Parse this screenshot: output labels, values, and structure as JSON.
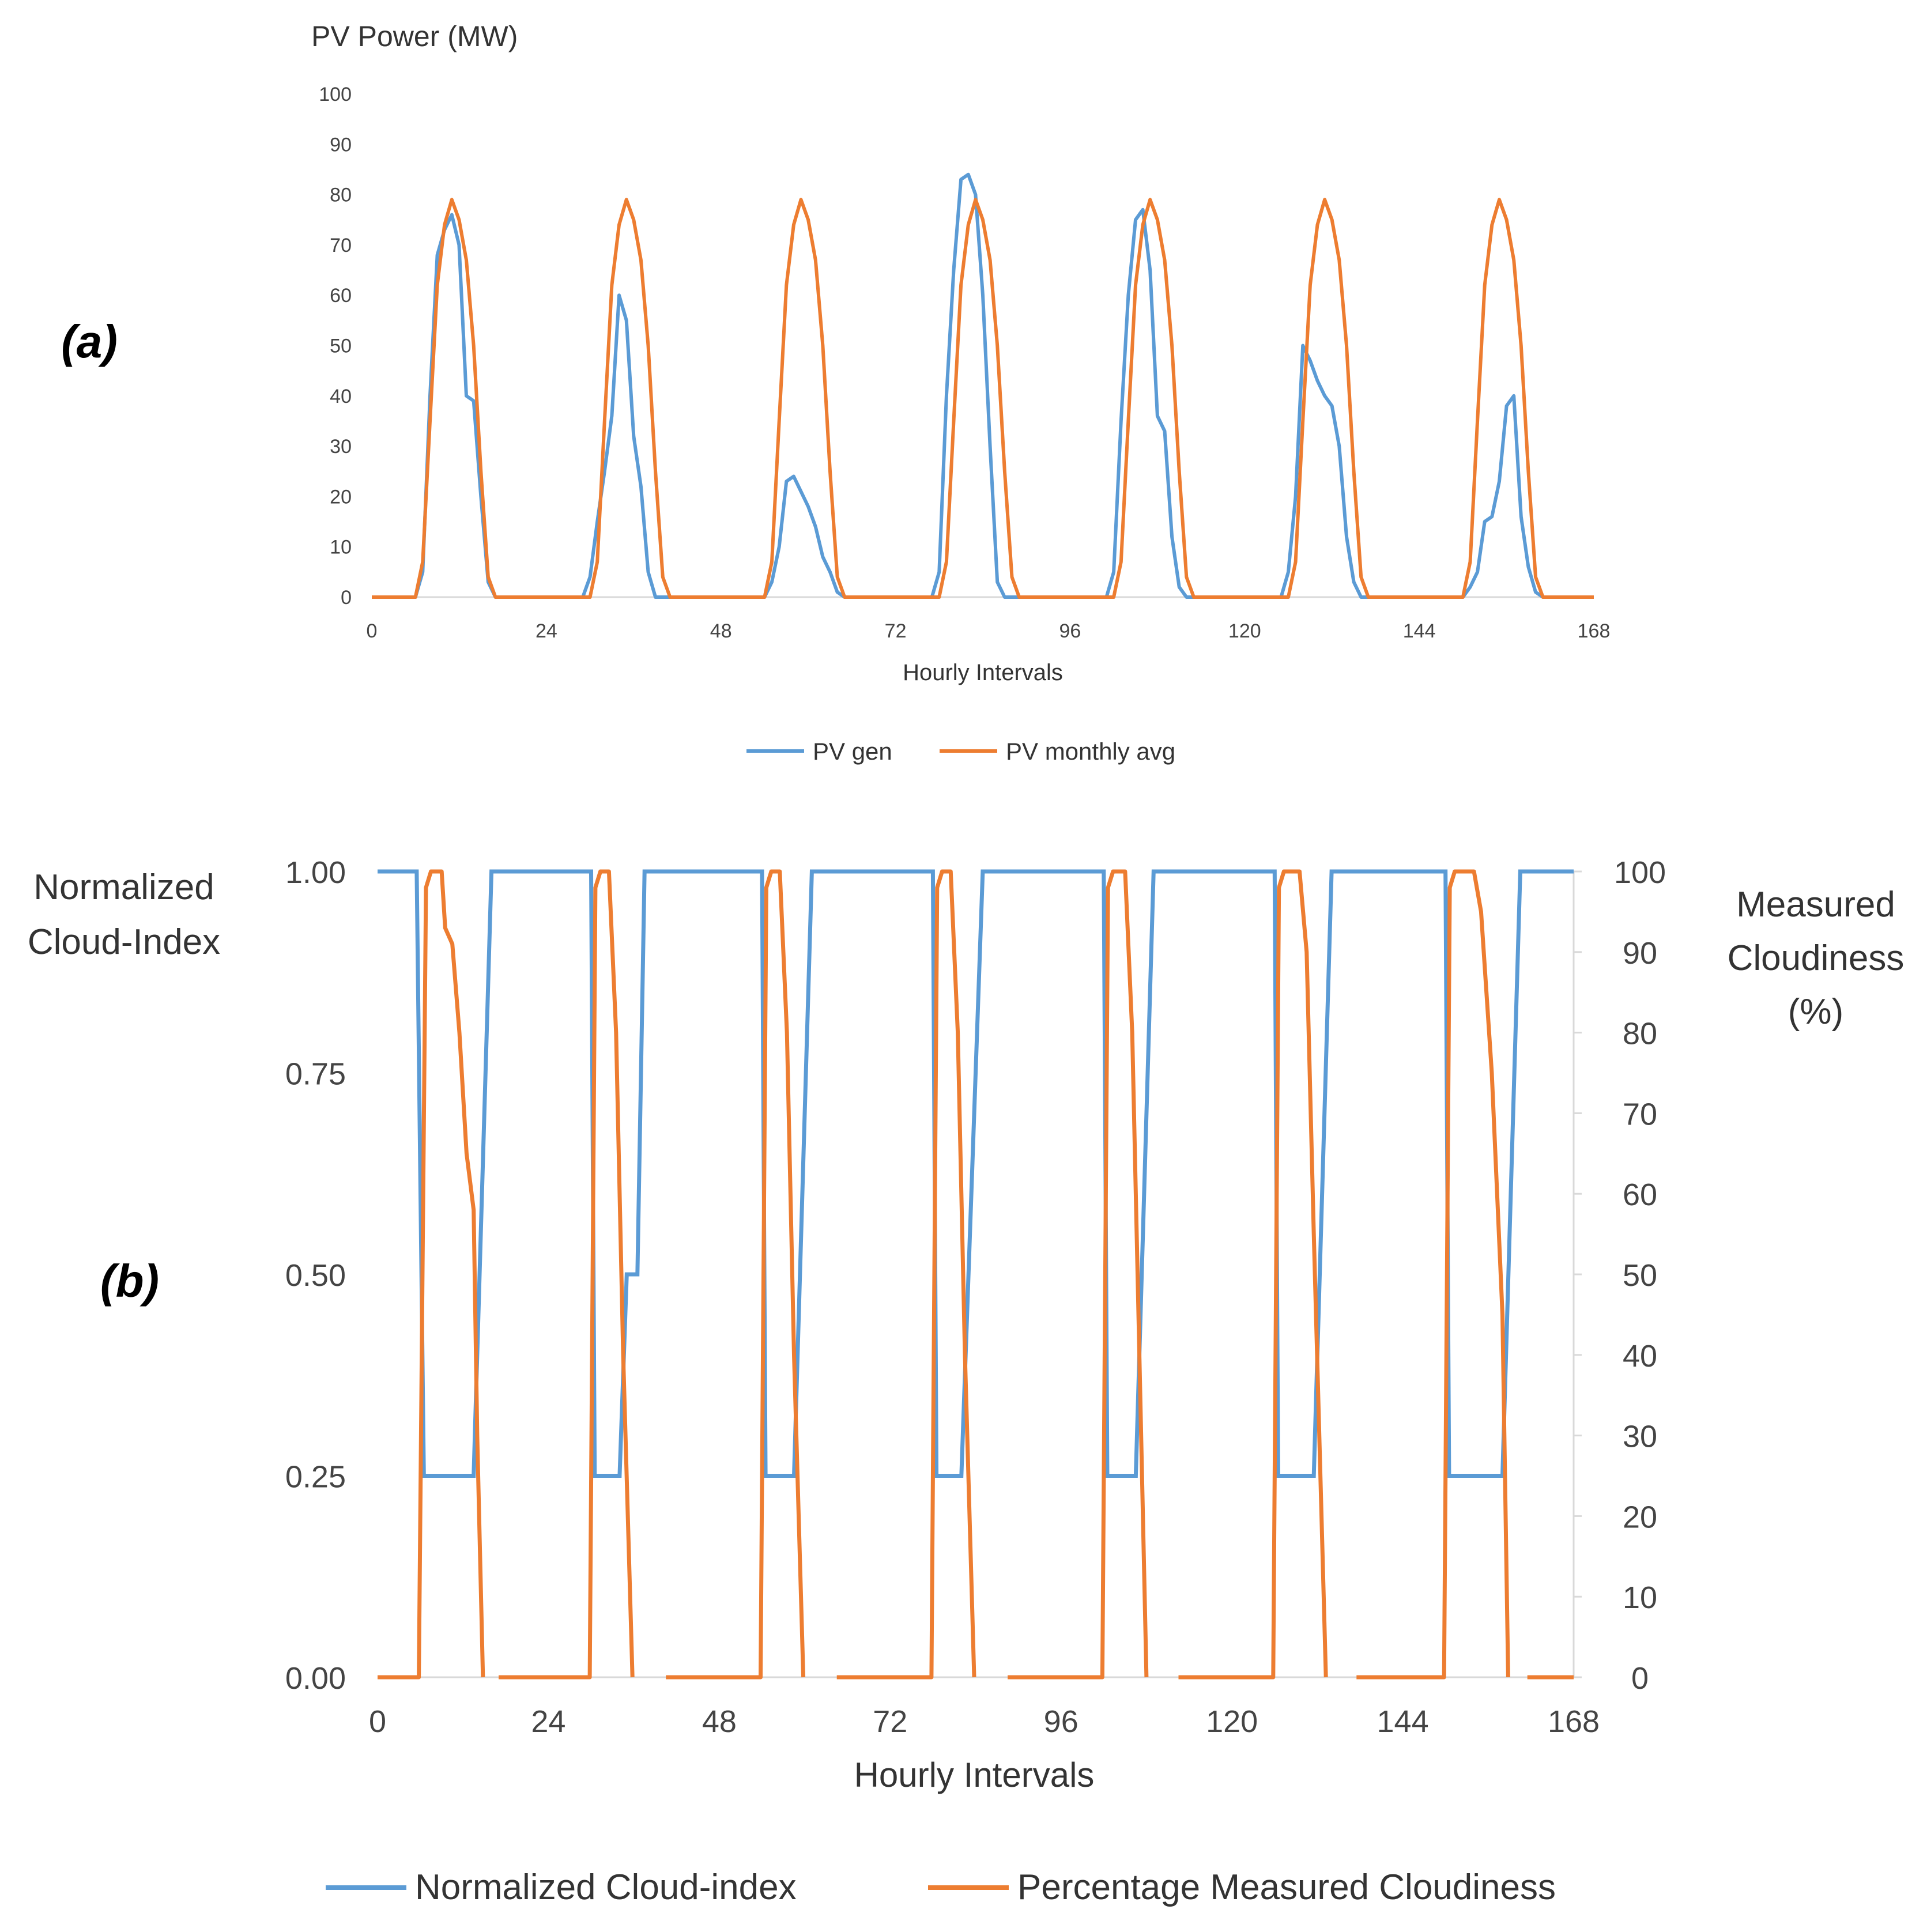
{
  "colors": {
    "blue": "#5b9bd5",
    "orange": "#ed7d31",
    "axis": "#d9d9d9"
  },
  "chart_data": [
    {
      "panel": "(a)",
      "type": "line",
      "title": "",
      "ylabel": "PV Power (MW)",
      "xlabel": "Hourly Intervals",
      "xlim": [
        0,
        168
      ],
      "ylim": [
        0,
        100
      ],
      "xticks": [
        "0",
        "24",
        "48",
        "72",
        "96",
        "120",
        "144",
        "168"
      ],
      "yticks": [
        "0",
        "10",
        "20",
        "30",
        "40",
        "50",
        "60",
        "70",
        "80",
        "90",
        "100"
      ],
      "grid": false,
      "legend": "bottom",
      "series": [
        {
          "name": "PV gen",
          "color": "#5b9bd5",
          "points": [
            [
              0,
              0
            ],
            [
              6,
              0
            ],
            [
              7,
              5
            ],
            [
              8,
              40
            ],
            [
              9,
              68
            ],
            [
              10,
              73
            ],
            [
              11,
              76
            ],
            [
              12,
              70
            ],
            [
              13,
              40
            ],
            [
              14,
              39
            ],
            [
              15,
              20
            ],
            [
              16,
              3
            ],
            [
              17,
              0
            ],
            [
              29,
              0
            ],
            [
              30,
              4
            ],
            [
              31,
              15
            ],
            [
              32,
              25
            ],
            [
              33,
              36
            ],
            [
              34,
              60
            ],
            [
              35,
              55
            ],
            [
              36,
              32
            ],
            [
              37,
              22
            ],
            [
              38,
              5
            ],
            [
              39,
              0
            ],
            [
              54,
              0
            ],
            [
              55,
              3
            ],
            [
              56,
              10
            ],
            [
              57,
              23
            ],
            [
              58,
              24
            ],
            [
              59,
              21
            ],
            [
              60,
              18
            ],
            [
              61,
              14
            ],
            [
              62,
              8
            ],
            [
              63,
              5
            ],
            [
              64,
              1
            ],
            [
              65,
              0
            ],
            [
              77,
              0
            ],
            [
              78,
              5
            ],
            [
              79,
              40
            ],
            [
              80,
              65
            ],
            [
              81,
              83
            ],
            [
              82,
              84
            ],
            [
              83,
              80
            ],
            [
              84,
              60
            ],
            [
              85,
              30
            ],
            [
              86,
              3
            ],
            [
              87,
              0
            ],
            [
              101,
              0
            ],
            [
              102,
              5
            ],
            [
              103,
              35
            ],
            [
              104,
              60
            ],
            [
              105,
              75
            ],
            [
              106,
              77
            ],
            [
              107,
              65
            ],
            [
              108,
              36
            ],
            [
              109,
              33
            ],
            [
              110,
              12
            ],
            [
              111,
              2
            ],
            [
              112,
              0
            ],
            [
              125,
              0
            ],
            [
              126,
              5
            ],
            [
              127,
              20
            ],
            [
              128,
              50
            ],
            [
              129,
              47
            ],
            [
              130,
              43
            ],
            [
              131,
              40
            ],
            [
              132,
              38
            ],
            [
              133,
              30
            ],
            [
              134,
              12
            ],
            [
              135,
              3
            ],
            [
              136,
              0
            ],
            [
              150,
              0
            ],
            [
              151,
              2
            ],
            [
              152,
              5
            ],
            [
              153,
              15
            ],
            [
              154,
              16
            ],
            [
              155,
              23
            ],
            [
              156,
              38
            ],
            [
              157,
              40
            ],
            [
              158,
              16
            ],
            [
              159,
              6
            ],
            [
              160,
              1
            ],
            [
              161,
              0
            ],
            [
              168,
              0
            ]
          ]
        },
        {
          "name": "PV monthly avg",
          "color": "#ed7d31",
          "points": [
            [
              0,
              0
            ],
            [
              6,
              0
            ],
            [
              7,
              7
            ],
            [
              8,
              35
            ],
            [
              9,
              62
            ],
            [
              10,
              74
            ],
            [
              11,
              79
            ],
            [
              12,
              75
            ],
            [
              13,
              67
            ],
            [
              14,
              50
            ],
            [
              15,
              25
            ],
            [
              16,
              4
            ],
            [
              17,
              0
            ],
            [
              30,
              0
            ],
            [
              31,
              7
            ],
            [
              32,
              35
            ],
            [
              33,
              62
            ],
            [
              34,
              74
            ],
            [
              35,
              79
            ],
            [
              36,
              75
            ],
            [
              37,
              67
            ],
            [
              38,
              50
            ],
            [
              39,
              25
            ],
            [
              40,
              4
            ],
            [
              41,
              0
            ],
            [
              54,
              0
            ],
            [
              55,
              7
            ],
            [
              56,
              35
            ],
            [
              57,
              62
            ],
            [
              58,
              74
            ],
            [
              59,
              79
            ],
            [
              60,
              75
            ],
            [
              61,
              67
            ],
            [
              62,
              50
            ],
            [
              63,
              25
            ],
            [
              64,
              4
            ],
            [
              65,
              0
            ],
            [
              78,
              0
            ],
            [
              79,
              7
            ],
            [
              80,
              35
            ],
            [
              81,
              62
            ],
            [
              82,
              74
            ],
            [
              83,
              79
            ],
            [
              84,
              75
            ],
            [
              85,
              67
            ],
            [
              86,
              50
            ],
            [
              87,
              25
            ],
            [
              88,
              4
            ],
            [
              89,
              0
            ],
            [
              102,
              0
            ],
            [
              103,
              7
            ],
            [
              104,
              35
            ],
            [
              105,
              62
            ],
            [
              106,
              74
            ],
            [
              107,
              79
            ],
            [
              108,
              75
            ],
            [
              109,
              67
            ],
            [
              110,
              50
            ],
            [
              111,
              25
            ],
            [
              112,
              4
            ],
            [
              113,
              0
            ],
            [
              126,
              0
            ],
            [
              127,
              7
            ],
            [
              128,
              35
            ],
            [
              129,
              62
            ],
            [
              130,
              74
            ],
            [
              131,
              79
            ],
            [
              132,
              75
            ],
            [
              133,
              67
            ],
            [
              134,
              50
            ],
            [
              135,
              25
            ],
            [
              136,
              4
            ],
            [
              137,
              0
            ],
            [
              150,
              0
            ],
            [
              151,
              7
            ],
            [
              152,
              35
            ],
            [
              153,
              62
            ],
            [
              154,
              74
            ],
            [
              155,
              79
            ],
            [
              156,
              75
            ],
            [
              157,
              67
            ],
            [
              158,
              50
            ],
            [
              159,
              25
            ],
            [
              160,
              4
            ],
            [
              161,
              0
            ],
            [
              168,
              0
            ]
          ]
        }
      ]
    },
    {
      "panel": "(b)",
      "type": "line",
      "title": "",
      "ylabel_left": "Normalized Cloud-Index",
      "ylabel_right": "Measured Cloudiness (%)",
      "xlabel": "Hourly Intervals",
      "xlim": [
        0,
        168
      ],
      "ylim_left": [
        0,
        1
      ],
      "ylim_right": [
        0,
        100
      ],
      "xticks": [
        "0",
        "24",
        "48",
        "72",
        "96",
        "120",
        "144",
        "168"
      ],
      "yticks_left": [
        "0.00",
        "0.25",
        "0.50",
        "0.75",
        "1.00"
      ],
      "yticks_right": [
        "0",
        "10",
        "20",
        "30",
        "40",
        "50",
        "60",
        "70",
        "80",
        "90",
        "100"
      ],
      "grid": false,
      "legend": "bottom",
      "series": [
        {
          "name": "Normalized Cloud-index",
          "axis": "left",
          "color": "#5b9bd5",
          "points": [
            [
              0,
              1
            ],
            [
              5.5,
              1
            ],
            [
              6.5,
              0.25
            ],
            [
              13.5,
              0.25
            ],
            [
              16,
              1
            ],
            [
              30,
              1
            ],
            [
              30.5,
              0.25
            ],
            [
              34,
              0.25
            ],
            [
              35,
              0.5
            ],
            [
              36.5,
              0.5
            ],
            [
              37.5,
              1
            ],
            [
              54,
              1
            ],
            [
              54.5,
              0.25
            ],
            [
              58.5,
              0.25
            ],
            [
              61,
              1
            ],
            [
              78,
              1
            ],
            [
              78.5,
              0.25
            ],
            [
              82,
              0.25
            ],
            [
              85,
              1
            ],
            [
              102,
              1
            ],
            [
              102.5,
              0.25
            ],
            [
              106.5,
              0.25
            ],
            [
              109,
              1
            ],
            [
              126,
              1
            ],
            [
              126.5,
              0.25
            ],
            [
              131.5,
              0.25
            ],
            [
              134,
              1
            ],
            [
              150,
              1
            ],
            [
              150.5,
              0.25
            ],
            [
              158,
              0.25
            ],
            [
              160.5,
              1
            ],
            [
              168,
              1
            ]
          ]
        },
        {
          "name": "Percentage Measured Cloudiness",
          "axis": "right",
          "color": "#ed7d31",
          "points": [
            [
              0,
              0
            ],
            [
              5.8,
              0
            ],
            [
              6.8,
              98
            ],
            [
              7.5,
              100
            ],
            [
              9,
              100
            ],
            [
              9.5,
              93
            ],
            [
              10.5,
              91
            ],
            [
              11.5,
              80
            ],
            [
              12.5,
              65
            ],
            [
              13.5,
              58
            ],
            [
              14,
              30
            ],
            [
              14.8,
              0
            ],
            [
              15,
              null
            ],
            [
              17,
              0
            ],
            [
              29.8,
              0
            ],
            [
              30.6,
              98
            ],
            [
              31.3,
              100
            ],
            [
              32.5,
              100
            ],
            [
              33.5,
              80
            ],
            [
              34.5,
              40
            ],
            [
              35.8,
              0
            ],
            [
              36,
              null
            ],
            [
              40.5,
              0
            ],
            [
              53.8,
              0
            ],
            [
              54.6,
              98
            ],
            [
              55.3,
              100
            ],
            [
              56.5,
              100
            ],
            [
              57.5,
              80
            ],
            [
              58.5,
              40
            ],
            [
              59.8,
              0
            ],
            [
              60,
              null
            ],
            [
              64.5,
              0
            ],
            [
              77.8,
              0
            ],
            [
              78.6,
              98
            ],
            [
              79.3,
              100
            ],
            [
              80.5,
              100
            ],
            [
              81.5,
              80
            ],
            [
              82.5,
              40
            ],
            [
              83.8,
              0
            ],
            [
              84,
              null
            ],
            [
              88.5,
              0
            ],
            [
              101.8,
              0
            ],
            [
              102.6,
              98
            ],
            [
              103.3,
              100
            ],
            [
              105,
              100
            ],
            [
              106,
              80
            ],
            [
              107,
              40
            ],
            [
              108,
              0
            ],
            [
              108.2,
              null
            ],
            [
              112.5,
              0
            ],
            [
              125.8,
              0
            ],
            [
              126.6,
              98
            ],
            [
              127.3,
              100
            ],
            [
              129.5,
              100
            ],
            [
              130.5,
              90
            ],
            [
              131.5,
              55
            ],
            [
              133.2,
              0
            ],
            [
              133.4,
              null
            ],
            [
              137.5,
              0
            ],
            [
              149.8,
              0
            ],
            [
              150.6,
              98
            ],
            [
              151.3,
              100
            ],
            [
              154,
              100
            ],
            [
              155,
              95
            ],
            [
              156.5,
              75
            ],
            [
              158,
              45
            ],
            [
              158.8,
              0
            ],
            [
              159,
              null
            ],
            [
              161.5,
              0
            ],
            [
              168,
              0
            ]
          ]
        }
      ]
    }
  ]
}
